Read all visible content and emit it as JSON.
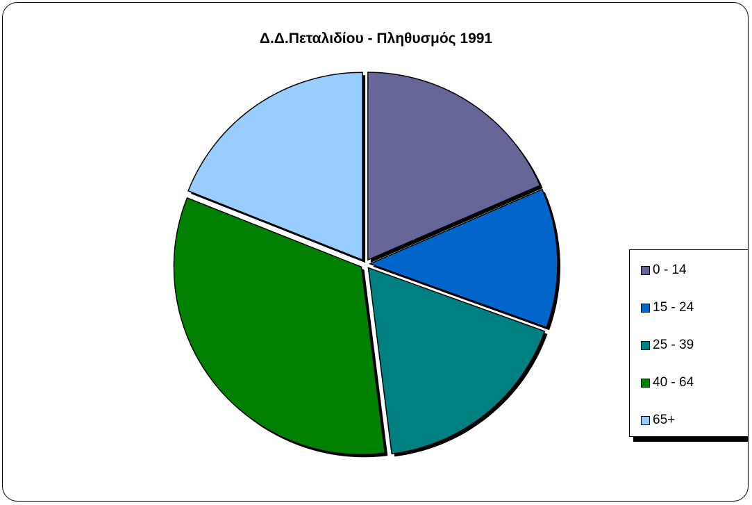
{
  "chart_data": {
    "type": "pie",
    "title": "Δ.Δ.Πεταλιδίου - Πληθυσμός 1991",
    "categories": [
      "0 - 14",
      "15 - 24",
      "25 - 39",
      "40 - 64",
      "65+"
    ],
    "values": [
      18.5,
      12.0,
      17.5,
      33.0,
      19.0
    ],
    "colors": [
      "#666699",
      "#0066cc",
      "#008080",
      "#008000",
      "#99ccff"
    ],
    "legend_position": "right",
    "exploded": true
  }
}
